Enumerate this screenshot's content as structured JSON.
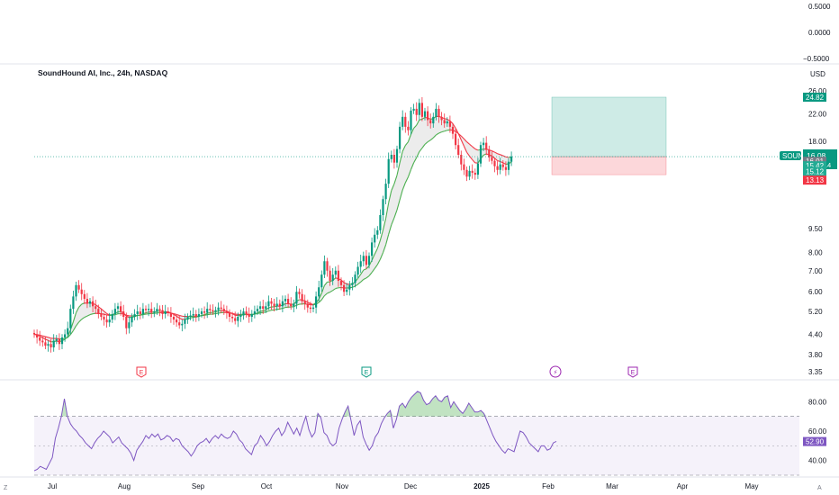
{
  "chart_data": [
    {
      "type": "indicator",
      "position": "top",
      "y_ticks": [
        "0.5000",
        "0.0000",
        "−0.5000"
      ]
    },
    {
      "type": "candlestick",
      "title": "SoundHound AI, Inc., 24h, NASDAQ",
      "currency": "USD",
      "scale": "log",
      "ylim": [
        3.35,
        26.5
      ],
      "y_ticks": [
        26,
        22,
        18,
        9.5,
        8,
        7,
        6,
        5.2,
        4.4,
        3.8,
        3.35
      ],
      "y_tick_labels": [
        "26.00",
        "22.00",
        "18.00",
        "9.50",
        "8.00",
        "7.00",
        "6.00",
        "5.20",
        "4.40",
        "3.80",
        "3.35"
      ],
      "x_labels": [
        "Jul",
        "Aug",
        "Sep",
        "Oct",
        "Nov",
        "Dec",
        "2025",
        "Feb",
        "Mar",
        "Apr",
        "May"
      ],
      "closes": [
        4.4,
        4.3,
        4.2,
        4.15,
        4.05,
        4.1,
        4.0,
        4.2,
        4.25,
        4.1,
        4.3,
        4.4,
        4.6,
        5.3,
        5.8,
        6.3,
        6.1,
        5.9,
        5.7,
        5.5,
        5.6,
        5.4,
        5.3,
        5.1,
        5.0,
        4.9,
        4.8,
        4.9,
        5.1,
        5.3,
        5.4,
        5.2,
        5.0,
        4.6,
        4.8,
        5.0,
        5.1,
        5.2,
        5.1,
        5.3,
        5.25,
        5.3,
        5.15,
        5.2,
        5.3,
        5.25,
        5.1,
        5.2,
        5.15,
        5.0,
        4.9,
        4.8,
        4.7,
        4.75,
        4.9,
        5.0,
        5.05,
        5.1,
        5.0,
        5.1,
        5.2,
        5.15,
        5.3,
        5.25,
        5.2,
        5.25,
        5.35,
        5.3,
        5.2,
        5.15,
        5.0,
        4.95,
        4.85,
        5.0,
        5.05,
        5.2,
        5.1,
        5.0,
        5.1,
        5.2,
        5.3,
        5.4,
        5.3,
        5.4,
        5.6,
        5.5,
        5.4,
        5.5,
        5.4,
        5.6,
        5.7,
        5.5,
        5.4,
        5.5,
        6.0,
        5.9,
        5.6,
        5.5,
        5.35,
        5.3,
        5.35,
        5.8,
        6.2,
        6.8,
        7.5,
        7.0,
        6.5,
        6.8,
        7.0,
        6.5,
        6.3,
        6.0,
        6.1,
        6.3,
        6.4,
        6.8,
        7.2,
        7.5,
        7.8,
        7.3,
        7.8,
        8.6,
        9.1,
        9.4,
        10.5,
        11.8,
        13.2,
        15.8,
        16.3,
        15.4,
        17.0,
        20.0,
        21.5,
        20.0,
        19.5,
        22.5,
        22.8,
        21.8,
        23.8,
        21.5,
        22.4,
        21.0,
        20.5,
        21.5,
        22.8,
        21.5,
        21.0,
        20.5,
        20.8,
        20.0,
        19.0,
        17.5,
        16.3,
        15.2,
        14.6,
        13.9,
        14.5,
        14.3,
        14.1,
        15.3,
        17.5,
        17.8,
        16.9,
        16.0,
        15.6,
        15.0,
        14.6,
        15.2,
        14.9,
        14.6,
        15.5,
        16.1
      ],
      "last_price": "16.08",
      "countdown": "06:50:14",
      "price_labels": [
        {
          "value": "24.82",
          "price": 24.82,
          "color": "#089981"
        },
        {
          "value": "16.01",
          "price": 15.55,
          "color": "#787b86"
        },
        {
          "value": "15.42",
          "price": 15.05,
          "color": "#22ab94"
        },
        {
          "value": "15.12",
          "price": 14.45,
          "color": "#22ab94"
        },
        {
          "value": "13.13",
          "price": 13.55,
          "color": "#f23645"
        }
      ],
      "symbol": "SOUN",
      "position_tool": {
        "entry": 16.08,
        "target": 24.82,
        "stop": 14.1
      },
      "events": [
        {
          "label": "E",
          "color": "#f23645"
        },
        {
          "label": "E",
          "color": "#089981"
        },
        {
          "label": "⚡",
          "color": "#9c27b0"
        },
        {
          "label": "E",
          "color": "#9c27b0"
        }
      ]
    },
    {
      "type": "line",
      "name": "RSI",
      "ylim": [
        30,
        90
      ],
      "y_ticks": [
        80,
        60,
        40
      ],
      "y_tick_labels": [
        "80.00",
        "60.00",
        "40.00"
      ],
      "band": [
        30,
        70
      ],
      "mid": 50,
      "last_value": "52.90",
      "values": [
        33,
        34,
        36,
        35,
        34,
        38,
        42,
        55,
        62,
        70,
        82,
        70,
        65,
        62,
        60,
        57,
        55,
        52,
        50,
        48,
        52,
        55,
        57,
        60,
        58,
        56,
        52,
        54,
        56,
        52,
        50,
        48,
        45,
        40,
        47,
        50,
        53,
        57,
        55,
        58,
        56,
        58,
        54,
        55,
        57,
        56,
        53,
        55,
        54,
        50,
        48,
        46,
        43,
        46,
        50,
        52,
        53,
        55,
        52,
        55,
        57,
        55,
        58,
        56,
        55,
        56,
        60,
        58,
        54,
        52,
        48,
        46,
        44,
        50,
        52,
        57,
        54,
        50,
        53,
        57,
        60,
        62,
        57,
        60,
        66,
        62,
        58,
        62,
        57,
        64,
        70,
        61,
        56,
        59,
        72,
        69,
        59,
        57,
        52,
        50,
        52,
        62,
        68,
        73,
        77,
        67,
        57,
        64,
        67,
        56,
        51,
        47,
        50,
        56,
        59,
        65,
        69,
        72,
        74,
        62,
        68,
        77,
        79,
        76,
        80,
        83,
        85,
        87,
        86,
        81,
        78,
        79,
        82,
        84,
        81,
        80,
        83,
        84,
        76,
        80,
        77,
        74,
        72,
        75,
        79,
        76,
        73,
        73,
        74,
        72,
        67,
        62,
        57,
        53,
        50,
        47,
        45,
        48,
        47,
        46,
        53,
        60,
        59,
        56,
        52,
        50,
        48,
        46,
        50,
        50,
        47,
        48,
        52,
        53
      ]
    }
  ]
}
